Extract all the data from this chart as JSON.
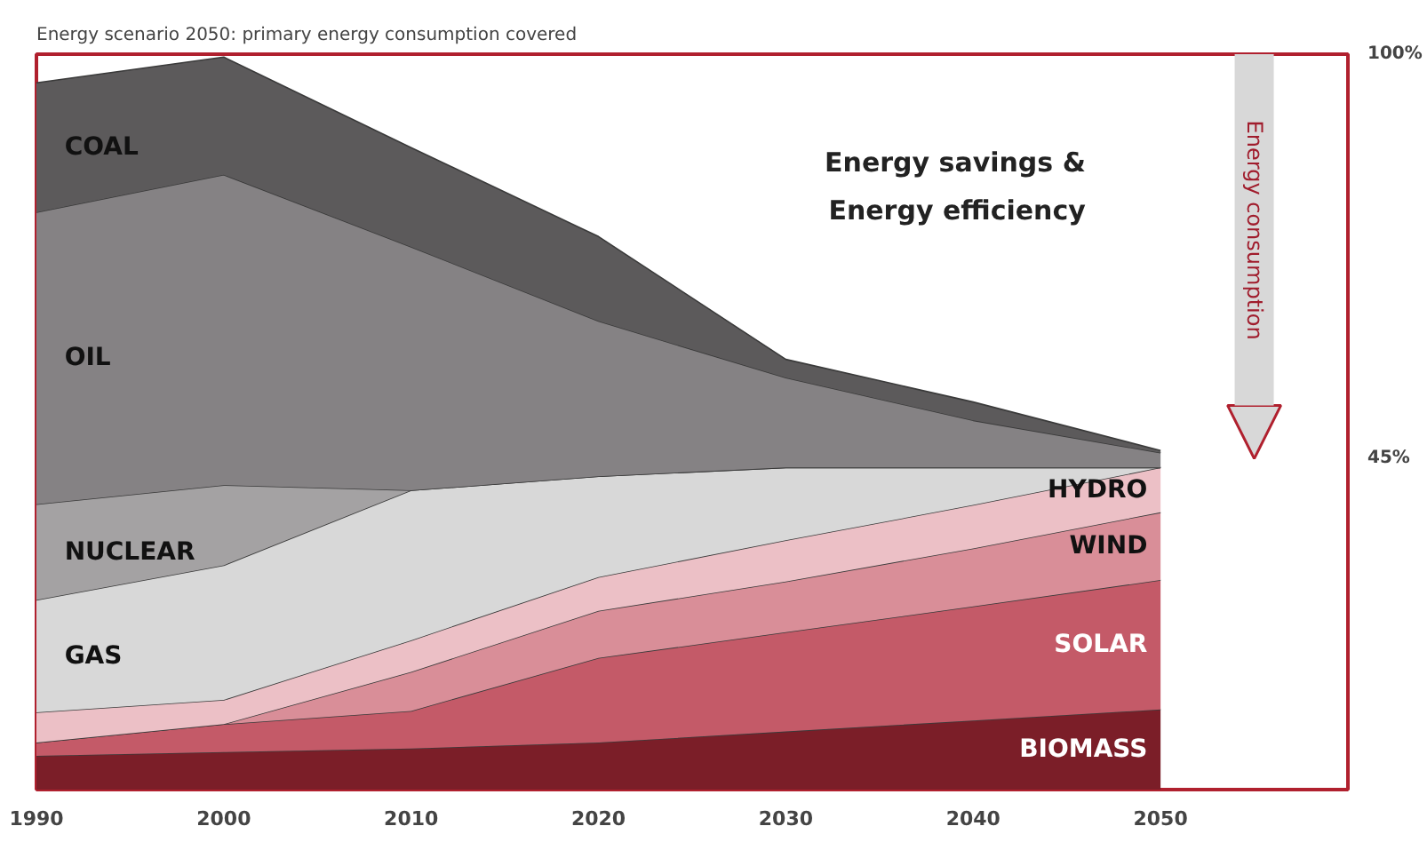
{
  "chart_data": {
    "type": "area",
    "stacked": true,
    "title": "Energy scenario 2050: primary energy consumption covered",
    "x": [
      1990,
      2000,
      2010,
      2020,
      2030,
      2040,
      2050
    ],
    "xlim": [
      1990,
      2060
    ],
    "xticks": [
      1990,
      2000,
      2010,
      2020,
      2030,
      2040,
      2050
    ],
    "ylim": [
      0,
      100
    ],
    "yticks": [
      {
        "value": 45,
        "label": "45%"
      },
      {
        "value": 100,
        "label": "100%"
      }
    ],
    "grid": false,
    "legend": false,
    "annotations": [
      "Energy savings &\nEnergy efficiency",
      "Energy consumption"
    ],
    "series": [
      {
        "name": "BIOMASS",
        "color": "#7b1e28",
        "values": [
          4.6,
          5.1,
          5.6,
          6.4,
          7.9,
          9.4,
          10.9
        ]
      },
      {
        "name": "SOLAR",
        "color": "#c45a68",
        "values": [
          1.8,
          3.8,
          5.1,
          11.5,
          13.5,
          15.5,
          17.6
        ]
      },
      {
        "name": "WIND",
        "color": "#d98e98",
        "values": [
          0,
          0,
          5.3,
          6.4,
          6.9,
          7.9,
          9.2
        ]
      },
      {
        "name": "HYDRO",
        "color": "#ecc0c6",
        "values": [
          4.1,
          3.3,
          4.3,
          4.6,
          5.6,
          5.9,
          6.1
        ]
      },
      {
        "name": "GAS",
        "color": "#d8d8d8",
        "values": [
          15.3,
          18.3,
          20.4,
          13.7,
          9.9,
          5.1,
          0
        ]
      },
      {
        "name": "NUCLEAR",
        "color": "#a4a2a3",
        "values": [
          13.0,
          10.9,
          0,
          0,
          0,
          0,
          0
        ]
      },
      {
        "name": "OIL",
        "color": "#858284",
        "values": [
          39.7,
          42.2,
          33.1,
          21.1,
          12.2,
          6.4,
          2.0
        ]
      },
      {
        "name": "COAL",
        "color": "#5c5a5b",
        "values": [
          17.6,
          16.0,
          13.5,
          11.5,
          2.5,
          2.5,
          0.3
        ]
      }
    ]
  }
}
